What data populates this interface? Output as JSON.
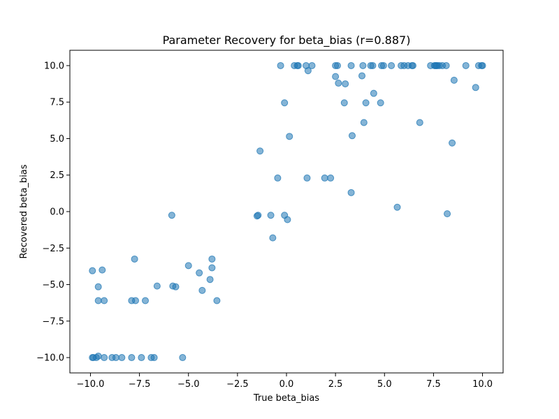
{
  "chart_data": {
    "type": "scatter",
    "title": "Parameter Recovery for beta_bias (r=0.887)",
    "xlabel": "True beta_bias",
    "ylabel": "Recovered beta_bias",
    "xlim": [
      -11.05,
      11.05
    ],
    "ylim": [
      -11.05,
      11.05
    ],
    "xticks": [
      -10.0,
      -7.5,
      -5.0,
      -2.5,
      0.0,
      2.5,
      5.0,
      7.5,
      10.0
    ],
    "xtick_labels": [
      "−10.0",
      "−7.5",
      "−5.0",
      "−2.5",
      "0.0",
      "2.5",
      "5.0",
      "7.5",
      "10.0"
    ],
    "yticks": [
      -10.0,
      -7.5,
      -5.0,
      -2.5,
      0.0,
      2.5,
      5.0,
      7.5,
      10.0
    ],
    "ytick_labels": [
      "−10.0",
      "−7.5",
      "−5.0",
      "−2.5",
      "0.0",
      "2.5",
      "5.0",
      "7.5",
      "10.0"
    ],
    "grid": false,
    "marker_color": "#1f77b4",
    "marker_alpha": 0.55,
    "points": [
      [
        -9.9,
        -10.0
      ],
      [
        -9.85,
        -10.0
      ],
      [
        -9.7,
        -10.0
      ],
      [
        -9.6,
        -9.9
      ],
      [
        -9.3,
        -10.0
      ],
      [
        -8.9,
        -10.0
      ],
      [
        -8.7,
        -10.0
      ],
      [
        -8.4,
        -10.0
      ],
      [
        -7.9,
        -10.0
      ],
      [
        -7.4,
        -10.0
      ],
      [
        -6.9,
        -10.0
      ],
      [
        -6.75,
        -10.0
      ],
      [
        -5.3,
        -10.0
      ],
      [
        -9.9,
        -4.05
      ],
      [
        -9.6,
        -5.15
      ],
      [
        -9.6,
        -6.1
      ],
      [
        -9.4,
        -4.0
      ],
      [
        -9.3,
        -6.1
      ],
      [
        -7.9,
        -6.1
      ],
      [
        -7.7,
        -6.1
      ],
      [
        -7.2,
        -6.1
      ],
      [
        -7.75,
        -3.25
      ],
      [
        -6.6,
        -5.1
      ],
      [
        -5.8,
        -5.1
      ],
      [
        -5.65,
        -5.15
      ],
      [
        -5.0,
        -3.7
      ],
      [
        -4.45,
        -4.2
      ],
      [
        -4.3,
        -5.4
      ],
      [
        -3.9,
        -4.65
      ],
      [
        -3.8,
        -3.25
      ],
      [
        -3.8,
        -3.85
      ],
      [
        -3.55,
        -6.1
      ],
      [
        -5.85,
        -0.25
      ],
      [
        -1.5,
        -0.3
      ],
      [
        -1.45,
        -0.25
      ],
      [
        -0.8,
        -0.25
      ],
      [
        -0.7,
        -1.8
      ],
      [
        -0.1,
        -0.25
      ],
      [
        0.05,
        -0.55
      ],
      [
        -1.35,
        4.15
      ],
      [
        -0.45,
        2.3
      ],
      [
        1.05,
        2.3
      ],
      [
        1.95,
        2.3
      ],
      [
        2.25,
        2.3
      ],
      [
        0.15,
        5.15
      ],
      [
        -0.1,
        7.45
      ],
      [
        -0.3,
        10.0
      ],
      [
        0.4,
        10.0
      ],
      [
        0.55,
        10.0
      ],
      [
        0.6,
        10.0
      ],
      [
        1.0,
        10.0
      ],
      [
        1.1,
        9.65
      ],
      [
        1.3,
        10.0
      ],
      [
        2.5,
        9.25
      ],
      [
        2.5,
        10.0
      ],
      [
        2.6,
        10.0
      ],
      [
        2.65,
        8.8
      ],
      [
        3.0,
        8.75
      ],
      [
        2.95,
        7.45
      ],
      [
        3.3,
        10.0
      ],
      [
        3.35,
        5.2
      ],
      [
        3.3,
        1.3
      ],
      [
        3.85,
        9.3
      ],
      [
        3.9,
        10.0
      ],
      [
        3.95,
        6.1
      ],
      [
        4.05,
        7.45
      ],
      [
        4.3,
        10.0
      ],
      [
        4.4,
        10.0
      ],
      [
        4.45,
        8.1
      ],
      [
        4.8,
        7.45
      ],
      [
        4.85,
        10.0
      ],
      [
        4.95,
        10.0
      ],
      [
        5.35,
        10.0
      ],
      [
        5.65,
        0.3
      ],
      [
        5.85,
        10.0
      ],
      [
        6.0,
        10.0
      ],
      [
        6.2,
        10.0
      ],
      [
        6.4,
        10.0
      ],
      [
        6.45,
        10.0
      ],
      [
        6.8,
        6.1
      ],
      [
        7.35,
        10.0
      ],
      [
        7.55,
        10.0
      ],
      [
        7.6,
        10.0
      ],
      [
        7.65,
        10.0
      ],
      [
        7.7,
        10.0
      ],
      [
        7.8,
        10.0
      ],
      [
        7.95,
        10.0
      ],
      [
        8.15,
        10.0
      ],
      [
        8.2,
        -0.15
      ],
      [
        8.45,
        4.7
      ],
      [
        8.55,
        9.0
      ],
      [
        9.15,
        10.0
      ],
      [
        9.65,
        8.5
      ],
      [
        9.8,
        10.0
      ],
      [
        9.95,
        10.0
      ],
      [
        10.0,
        10.0
      ]
    ]
  }
}
